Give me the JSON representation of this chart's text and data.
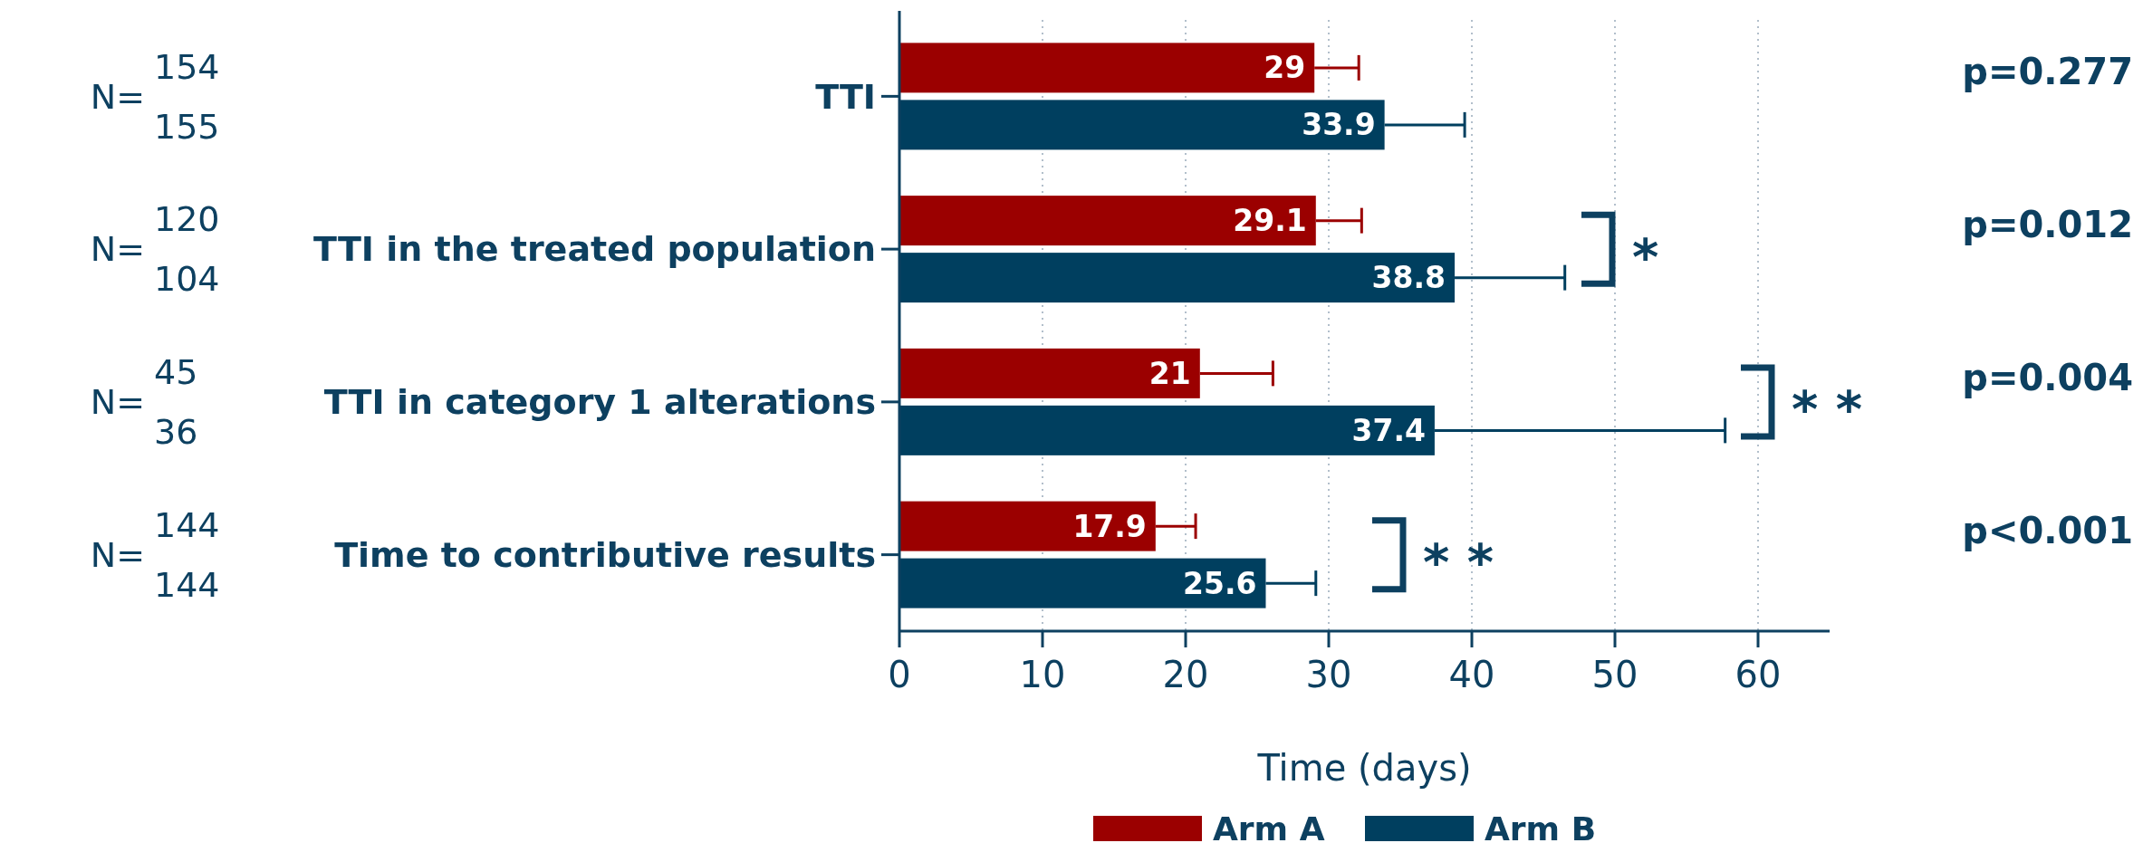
{
  "chart_data": {
    "type": "bar",
    "orientation": "horizontal",
    "xlabel": "Time (days)",
    "categories": [
      "TTI",
      "TTI in the treated population",
      "TTI in category 1 alterations",
      "Time to contributive results"
    ],
    "series": [
      {
        "name": "Arm A",
        "color": "#9b0000",
        "values": [
          29,
          29.1,
          21,
          17.9
        ],
        "errors": [
          [
            29,
            32.1
          ],
          [
            29.1,
            32.3
          ],
          [
            21,
            26.1
          ],
          [
            17.9,
            20.7
          ]
        ]
      },
      {
        "name": "Arm B",
        "color": "#003f5f",
        "values": [
          33.9,
          38.8,
          37.4,
          25.6
        ],
        "errors": [
          [
            33.9,
            39.5
          ],
          [
            38.8,
            46.5
          ],
          [
            37.4,
            57.7
          ],
          [
            25.6,
            29.1
          ]
        ]
      }
    ],
    "xlim": [
      0,
      65
    ],
    "xticks": [
      0,
      10,
      20,
      30,
      40,
      50,
      60
    ],
    "grid": "x",
    "legend": "bottom",
    "data_labels": true,
    "annotations": [
      "N=",
      "154",
      "155",
      "p=0.277",
      "N=",
      "120",
      "104",
      "p=0.012",
      "N=",
      "45",
      "36",
      "p=0.004",
      "N=",
      "144",
      "144",
      "p<0.001",
      "*",
      "* *",
      "* *"
    ]
  }
}
